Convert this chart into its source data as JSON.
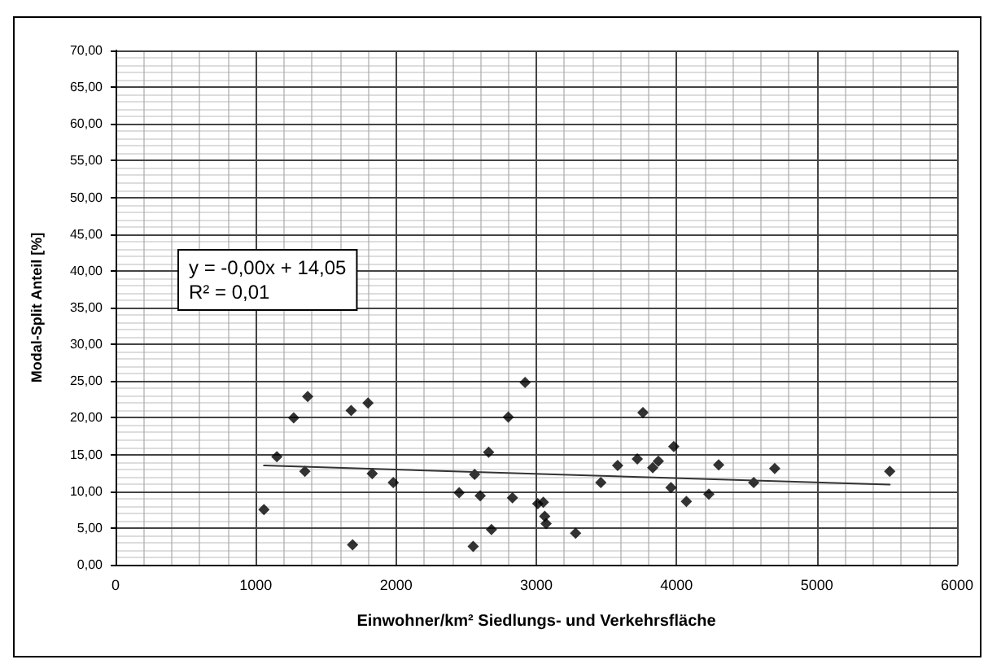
{
  "chart_data": {
    "type": "scatter",
    "xlabel": "Einwohner/km² Siedlungs- und Verkehrsfläche",
    "ylabel": "Modal-Split Anteil [%]",
    "annotations": [
      "y = -0,00x + 14,05\nR² = 0,01"
    ],
    "series": [
      {
        "color": "#000000",
        "marker": "diamond",
        "x": [
          1058,
          1150,
          1270,
          1350,
          1370,
          1680,
          1690,
          1800,
          1830,
          1980,
          2450,
          2550,
          2560,
          2600,
          2660,
          2680,
          2800,
          2830,
          2920,
          3010,
          3050,
          3060,
          3070,
          3280,
          3460,
          3580,
          3720,
          3760,
          3830,
          3870,
          3960,
          3980,
          4070,
          4230,
          4300,
          4550,
          4700,
          5520
        ],
        "values": [
          7.5,
          14.7,
          20,
          12.7,
          22.9,
          21,
          2.7,
          22,
          12.4,
          11.2,
          9.8,
          2.5,
          12.3,
          9.4,
          15.3,
          4.8,
          20.1,
          9.1,
          24.8,
          8.3,
          8.5,
          6.6,
          5.6,
          4.3,
          11.2,
          13.5,
          14.4,
          20.7,
          13.2,
          14.1,
          10.5,
          16.1,
          8.6,
          9.6,
          13.6,
          11.2,
          13.1,
          12.7
        ]
      },
      {
        "type": "line",
        "color": "#333333",
        "marker": "none",
        "line_style": "solid",
        "x": [
          1058,
          5520
        ],
        "values": [
          13.5,
          10.9
        ]
      }
    ],
    "xlim": [
      0,
      6000
    ],
    "xticks": [
      0,
      1000,
      2000,
      3000,
      4000,
      5000,
      6000
    ],
    "ylim": [
      0,
      70
    ],
    "yticks": [
      {
        "value": 0,
        "label": "0,00"
      },
      {
        "value": 5,
        "label": "5,00"
      },
      {
        "value": 10,
        "label": "10,00"
      },
      {
        "value": 15,
        "label": "15,00"
      },
      {
        "value": 20,
        "label": "20,00"
      },
      {
        "value": 25,
        "label": "25,00"
      },
      {
        "value": 30,
        "label": "30,00"
      },
      {
        "value": 35,
        "label": "35,00"
      },
      {
        "value": 40,
        "label": "40,00"
      },
      {
        "value": 45,
        "label": "45,00"
      },
      {
        "value": 50,
        "label": "50,00"
      },
      {
        "value": 55,
        "label": "55,00"
      },
      {
        "value": 60,
        "label": "60,00"
      },
      {
        "value": 65,
        "label": "65,00"
      },
      {
        "value": 70,
        "label": "70,00"
      }
    ],
    "grid": true
  }
}
